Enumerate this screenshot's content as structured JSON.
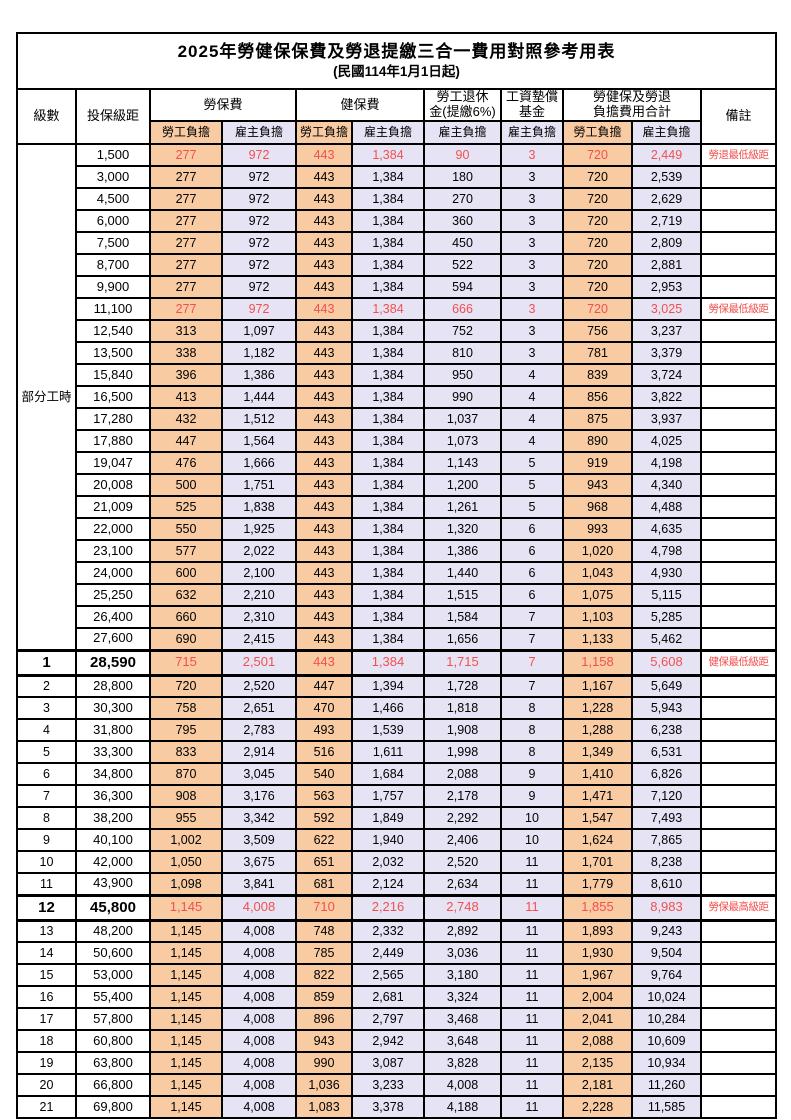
{
  "title": "2025年勞健保保費及勞退提繳三合一費用對照參考用表",
  "subtitle": "(民國114年1月1日起)",
  "colors": {
    "employee_bg": "#f8cba2",
    "employer_bg": "#e6e4f4",
    "highlight_red": "#f2504e",
    "border": "#000000"
  },
  "table": {
    "header": {
      "level": "級數",
      "bracket": "投保級距",
      "labor_insurance": "勞保費",
      "health_insurance": "健保費",
      "pension": "勞工退休\n金(提繳6%)",
      "wage_fund": "工資墊償\n基金",
      "total": "勞健保及勞退\n負擔費用合計",
      "remark": "備註",
      "employee": "勞工負擔",
      "employer": "雇主負擔"
    },
    "part_time_label": "部分工時",
    "sub_col_types": [
      "emp",
      "er",
      "emp",
      "er",
      "er",
      "er",
      "emp",
      "er"
    ],
    "rows": [
      {
        "bracket": "1,500",
        "values": [
          "277",
          "972",
          "443",
          "1,384",
          "90",
          "3",
          "720",
          "2,449"
        ],
        "red": true,
        "hl": false,
        "remark": "勞退最低級距"
      },
      {
        "bracket": "3,000",
        "values": [
          "277",
          "972",
          "443",
          "1,384",
          "180",
          "3",
          "720",
          "2,539"
        ],
        "red": false,
        "hl": false,
        "remark": ""
      },
      {
        "bracket": "4,500",
        "values": [
          "277",
          "972",
          "443",
          "1,384",
          "270",
          "3",
          "720",
          "2,629"
        ],
        "red": false,
        "hl": false,
        "remark": ""
      },
      {
        "bracket": "6,000",
        "values": [
          "277",
          "972",
          "443",
          "1,384",
          "360",
          "3",
          "720",
          "2,719"
        ],
        "red": false,
        "hl": false,
        "remark": ""
      },
      {
        "bracket": "7,500",
        "values": [
          "277",
          "972",
          "443",
          "1,384",
          "450",
          "3",
          "720",
          "2,809"
        ],
        "red": false,
        "hl": false,
        "remark": ""
      },
      {
        "bracket": "8,700",
        "values": [
          "277",
          "972",
          "443",
          "1,384",
          "522",
          "3",
          "720",
          "2,881"
        ],
        "red": false,
        "hl": false,
        "remark": ""
      },
      {
        "bracket": "9,900",
        "values": [
          "277",
          "972",
          "443",
          "1,384",
          "594",
          "3",
          "720",
          "2,953"
        ],
        "red": false,
        "hl": false,
        "remark": ""
      },
      {
        "bracket": "11,100",
        "values": [
          "277",
          "972",
          "443",
          "1,384",
          "666",
          "3",
          "720",
          "3,025"
        ],
        "red": true,
        "hl": false,
        "remark": "勞保最低級距"
      },
      {
        "bracket": "12,540",
        "values": [
          "313",
          "1,097",
          "443",
          "1,384",
          "752",
          "3",
          "756",
          "3,237"
        ],
        "red": false,
        "hl": false,
        "remark": ""
      },
      {
        "bracket": "13,500",
        "values": [
          "338",
          "1,182",
          "443",
          "1,384",
          "810",
          "3",
          "781",
          "3,379"
        ],
        "red": false,
        "hl": false,
        "remark": ""
      },
      {
        "bracket": "15,840",
        "values": [
          "396",
          "1,386",
          "443",
          "1,384",
          "950",
          "4",
          "839",
          "3,724"
        ],
        "red": false,
        "hl": false,
        "remark": ""
      },
      {
        "bracket": "16,500",
        "values": [
          "413",
          "1,444",
          "443",
          "1,384",
          "990",
          "4",
          "856",
          "3,822"
        ],
        "red": false,
        "hl": false,
        "remark": ""
      },
      {
        "bracket": "17,280",
        "values": [
          "432",
          "1,512",
          "443",
          "1,384",
          "1,037",
          "4",
          "875",
          "3,937"
        ],
        "red": false,
        "hl": false,
        "remark": ""
      },
      {
        "bracket": "17,880",
        "values": [
          "447",
          "1,564",
          "443",
          "1,384",
          "1,073",
          "4",
          "890",
          "4,025"
        ],
        "red": false,
        "hl": false,
        "remark": ""
      },
      {
        "bracket": "19,047",
        "values": [
          "476",
          "1,666",
          "443",
          "1,384",
          "1,143",
          "5",
          "919",
          "4,198"
        ],
        "red": false,
        "hl": false,
        "remark": ""
      },
      {
        "bracket": "20,008",
        "values": [
          "500",
          "1,751",
          "443",
          "1,384",
          "1,200",
          "5",
          "943",
          "4,340"
        ],
        "red": false,
        "hl": false,
        "remark": ""
      },
      {
        "bracket": "21,009",
        "values": [
          "525",
          "1,838",
          "443",
          "1,384",
          "1,261",
          "5",
          "968",
          "4,488"
        ],
        "red": false,
        "hl": false,
        "remark": ""
      },
      {
        "bracket": "22,000",
        "values": [
          "550",
          "1,925",
          "443",
          "1,384",
          "1,320",
          "6",
          "993",
          "4,635"
        ],
        "red": false,
        "hl": false,
        "remark": ""
      },
      {
        "bracket": "23,100",
        "values": [
          "577",
          "2,022",
          "443",
          "1,384",
          "1,386",
          "6",
          "1,020",
          "4,798"
        ],
        "red": false,
        "hl": false,
        "remark": ""
      },
      {
        "bracket": "24,000",
        "values": [
          "600",
          "2,100",
          "443",
          "1,384",
          "1,440",
          "6",
          "1,043",
          "4,930"
        ],
        "red": false,
        "hl": false,
        "remark": ""
      },
      {
        "bracket": "25,250",
        "values": [
          "632",
          "2,210",
          "443",
          "1,384",
          "1,515",
          "6",
          "1,075",
          "5,115"
        ],
        "red": false,
        "hl": false,
        "remark": ""
      },
      {
        "bracket": "26,400",
        "values": [
          "660",
          "2,310",
          "443",
          "1,384",
          "1,584",
          "7",
          "1,103",
          "5,285"
        ],
        "red": false,
        "hl": false,
        "remark": ""
      },
      {
        "bracket": "27,600",
        "values": [
          "690",
          "2,415",
          "443",
          "1,384",
          "1,656",
          "7",
          "1,133",
          "5,462"
        ],
        "red": false,
        "hl": false,
        "remark": ""
      },
      {
        "level": "1",
        "bracket": "28,590",
        "values": [
          "715",
          "2,501",
          "443",
          "1,384",
          "1,715",
          "7",
          "1,158",
          "5,608"
        ],
        "red": true,
        "hl": true,
        "remark": "健保最低級距"
      },
      {
        "level": "2",
        "bracket": "28,800",
        "values": [
          "720",
          "2,520",
          "447",
          "1,394",
          "1,728",
          "7",
          "1,167",
          "5,649"
        ],
        "red": false,
        "hl": false,
        "remark": ""
      },
      {
        "level": "3",
        "bracket": "30,300",
        "values": [
          "758",
          "2,651",
          "470",
          "1,466",
          "1,818",
          "8",
          "1,228",
          "5,943"
        ],
        "red": false,
        "hl": false,
        "remark": ""
      },
      {
        "level": "4",
        "bracket": "31,800",
        "values": [
          "795",
          "2,783",
          "493",
          "1,539",
          "1,908",
          "8",
          "1,288",
          "6,238"
        ],
        "red": false,
        "hl": false,
        "remark": ""
      },
      {
        "level": "5",
        "bracket": "33,300",
        "values": [
          "833",
          "2,914",
          "516",
          "1,611",
          "1,998",
          "8",
          "1,349",
          "6,531"
        ],
        "red": false,
        "hl": false,
        "remark": ""
      },
      {
        "level": "6",
        "bracket": "34,800",
        "values": [
          "870",
          "3,045",
          "540",
          "1,684",
          "2,088",
          "9",
          "1,410",
          "6,826"
        ],
        "red": false,
        "hl": false,
        "remark": ""
      },
      {
        "level": "7",
        "bracket": "36,300",
        "values": [
          "908",
          "3,176",
          "563",
          "1,757",
          "2,178",
          "9",
          "1,471",
          "7,120"
        ],
        "red": false,
        "hl": false,
        "remark": ""
      },
      {
        "level": "8",
        "bracket": "38,200",
        "values": [
          "955",
          "3,342",
          "592",
          "1,849",
          "2,292",
          "10",
          "1,547",
          "7,493"
        ],
        "red": false,
        "hl": false,
        "remark": ""
      },
      {
        "level": "9",
        "bracket": "40,100",
        "values": [
          "1,002",
          "3,509",
          "622",
          "1,940",
          "2,406",
          "10",
          "1,624",
          "7,865"
        ],
        "red": false,
        "hl": false,
        "remark": ""
      },
      {
        "level": "10",
        "bracket": "42,000",
        "values": [
          "1,050",
          "3,675",
          "651",
          "2,032",
          "2,520",
          "11",
          "1,701",
          "8,238"
        ],
        "red": false,
        "hl": false,
        "remark": ""
      },
      {
        "level": "11",
        "bracket": "43,900",
        "values": [
          "1,098",
          "3,841",
          "681",
          "2,124",
          "2,634",
          "11",
          "1,779",
          "8,610"
        ],
        "red": false,
        "hl": false,
        "remark": ""
      },
      {
        "level": "12",
        "bracket": "45,800",
        "values": [
          "1,145",
          "4,008",
          "710",
          "2,216",
          "2,748",
          "11",
          "1,855",
          "8,983"
        ],
        "red": true,
        "hl": true,
        "remark": "勞保最高級距"
      },
      {
        "level": "13",
        "bracket": "48,200",
        "values": [
          "1,145",
          "4,008",
          "748",
          "2,332",
          "2,892",
          "11",
          "1,893",
          "9,243"
        ],
        "red": false,
        "hl": false,
        "remark": ""
      },
      {
        "level": "14",
        "bracket": "50,600",
        "values": [
          "1,145",
          "4,008",
          "785",
          "2,449",
          "3,036",
          "11",
          "1,930",
          "9,504"
        ],
        "red": false,
        "hl": false,
        "remark": ""
      },
      {
        "level": "15",
        "bracket": "53,000",
        "values": [
          "1,145",
          "4,008",
          "822",
          "2,565",
          "3,180",
          "11",
          "1,967",
          "9,764"
        ],
        "red": false,
        "hl": false,
        "remark": ""
      },
      {
        "level": "16",
        "bracket": "55,400",
        "values": [
          "1,145",
          "4,008",
          "859",
          "2,681",
          "3,324",
          "11",
          "2,004",
          "10,024"
        ],
        "red": false,
        "hl": false,
        "remark": ""
      },
      {
        "level": "17",
        "bracket": "57,800",
        "values": [
          "1,145",
          "4,008",
          "896",
          "2,797",
          "3,468",
          "11",
          "2,041",
          "10,284"
        ],
        "red": false,
        "hl": false,
        "remark": ""
      },
      {
        "level": "18",
        "bracket": "60,800",
        "values": [
          "1,145",
          "4,008",
          "943",
          "2,942",
          "3,648",
          "11",
          "2,088",
          "10,609"
        ],
        "red": false,
        "hl": false,
        "remark": ""
      },
      {
        "level": "19",
        "bracket": "63,800",
        "values": [
          "1,145",
          "4,008",
          "990",
          "3,087",
          "3,828",
          "11",
          "2,135",
          "10,934"
        ],
        "red": false,
        "hl": false,
        "remark": ""
      },
      {
        "level": "20",
        "bracket": "66,800",
        "values": [
          "1,145",
          "4,008",
          "1,036",
          "3,233",
          "4,008",
          "11",
          "2,181",
          "11,260"
        ],
        "red": false,
        "hl": false,
        "remark": ""
      },
      {
        "level": "21",
        "bracket": "69,800",
        "values": [
          "1,145",
          "4,008",
          "1,083",
          "3,378",
          "4,188",
          "11",
          "2,228",
          "11,585"
        ],
        "red": false,
        "hl": false,
        "remark": ""
      }
    ]
  }
}
